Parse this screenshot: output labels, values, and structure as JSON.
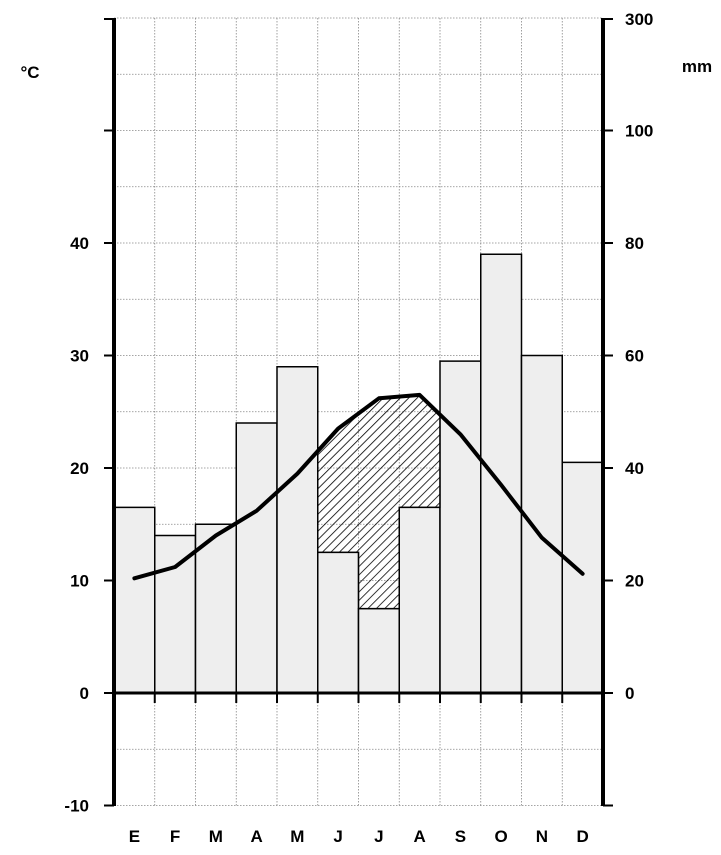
{
  "chart_data": {
    "type": "bar",
    "title": "",
    "xlabel": "",
    "left_axis": {
      "unit": "°C",
      "ticks": [
        40,
        30,
        20,
        10,
        0,
        -10
      ],
      "ylim": [
        -10,
        50
      ]
    },
    "right_axis": {
      "unit": "mm",
      "ticks": [
        300,
        100,
        80,
        60,
        40,
        20,
        0
      ],
      "ylim": [
        -20,
        100
      ],
      "break_top": 300
    },
    "categories": [
      "E",
      "F",
      "M",
      "A",
      "M",
      "J",
      "J",
      "A",
      "S",
      "O",
      "N",
      "D"
    ],
    "series": [
      {
        "kind": "bar",
        "axis": "right",
        "values": [
          33,
          28,
          30,
          48,
          58,
          25,
          15,
          33,
          59,
          78,
          60,
          41
        ],
        "fill": "#eeeeee"
      },
      {
        "kind": "line",
        "axis": "left",
        "values": [
          10.2,
          11.2,
          14,
          16.2,
          19.5,
          23.5,
          26.2,
          26.5,
          23,
          18.5,
          13.8,
          10.6
        ],
        "color": "#000000"
      }
    ],
    "dry_period_months": [
      5,
      6,
      7
    ],
    "grid": true
  }
}
